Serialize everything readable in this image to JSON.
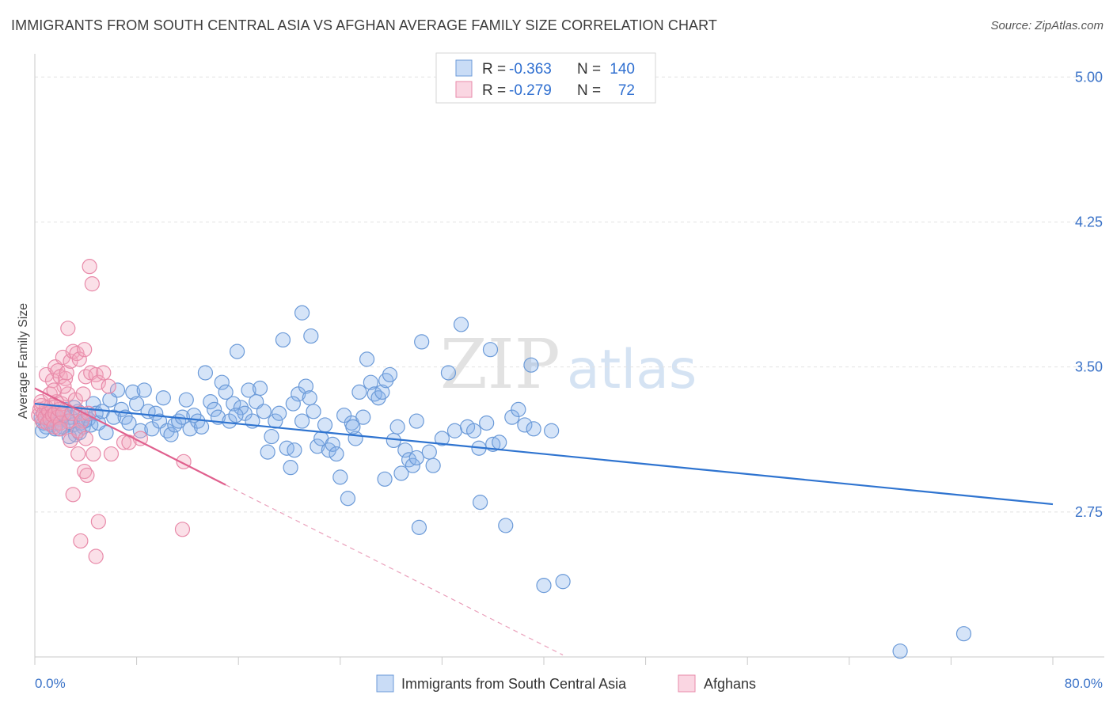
{
  "title": "IMMIGRANTS FROM SOUTH CENTRAL ASIA VS AFGHAN AVERAGE FAMILY SIZE CORRELATION CHART",
  "source": "Source: ZipAtlas.com",
  "watermark": {
    "zip": "ZIP",
    "atlas": "atlas"
  },
  "colors": {
    "blue": "#2f74d0",
    "blue_fill": "rgba(135,178,235,0.35)",
    "pink": "#e0608e",
    "pink_fill": "rgba(243,165,190,0.35)",
    "tick_label": "#3b73c8",
    "grid": "#e2e2e2"
  },
  "legend": {
    "rows": [
      {
        "r_label": "R =",
        "r_value": "-0.363",
        "n_label": "N =",
        "n_value": "140"
      },
      {
        "r_label": "R =",
        "r_value": "-0.279",
        "n_label": "N =",
        "n_value": "72"
      }
    ]
  },
  "bottom_legend": [
    "Immigrants from South Central Asia",
    "Afghans"
  ],
  "chart_data": {
    "type": "scatter",
    "ylabel": "Average Family Size",
    "xlim": [
      0,
      80
    ],
    "ylim": [
      2.0,
      5.12
    ],
    "x_tick_labels": [
      "0.0%",
      "80.0%"
    ],
    "y_ticks": [
      2.75,
      3.5,
      4.25,
      5.0
    ],
    "y_tick_labels": [
      "2.75",
      "3.50",
      "4.25",
      "5.00"
    ],
    "grid": true,
    "series": [
      {
        "name": "Immigrants from South Central Asia",
        "trend": {
          "x": [
            0.0,
            80.0
          ],
          "y": [
            3.31,
            2.79
          ]
        },
        "points": [
          [
            0.5,
            3.24
          ],
          [
            0.7,
            3.21
          ],
          [
            0.9,
            3.19
          ],
          [
            1.1,
            3.22
          ],
          [
            1.3,
            3.2
          ],
          [
            1.5,
            3.26
          ],
          [
            1.6,
            3.18
          ],
          [
            1.8,
            3.21
          ],
          [
            2.0,
            3.23
          ],
          [
            2.2,
            3.19
          ],
          [
            2.4,
            3.28
          ],
          [
            2.6,
            3.22
          ],
          [
            2.8,
            3.24
          ],
          [
            3.0,
            3.2
          ],
          [
            3.2,
            3.15
          ],
          [
            3.4,
            3.27
          ],
          [
            3.6,
            3.21
          ],
          [
            3.8,
            3.19
          ],
          [
            4.0,
            3.25
          ],
          [
            4.2,
            3.23
          ],
          [
            0.6,
            3.17
          ],
          [
            1.0,
            3.26
          ],
          [
            1.4,
            3.23
          ],
          [
            1.9,
            3.18
          ],
          [
            2.3,
            3.25
          ],
          [
            2.7,
            3.14
          ],
          [
            3.1,
            3.29
          ],
          [
            3.5,
            3.16
          ],
          [
            3.9,
            3.22
          ],
          [
            4.4,
            3.2
          ],
          [
            4.6,
            3.31
          ],
          [
            4.8,
            3.26
          ],
          [
            5.0,
            3.21
          ],
          [
            5.3,
            3.27
          ],
          [
            5.6,
            3.16
          ],
          [
            5.9,
            3.33
          ],
          [
            6.2,
            3.24
          ],
          [
            6.5,
            3.38
          ],
          [
            6.8,
            3.28
          ],
          [
            7.1,
            3.24
          ],
          [
            7.4,
            3.21
          ],
          [
            7.7,
            3.37
          ],
          [
            8.0,
            3.31
          ],
          [
            8.3,
            3.17
          ],
          [
            8.6,
            3.38
          ],
          [
            8.9,
            3.27
          ],
          [
            9.2,
            3.18
          ],
          [
            9.5,
            3.26
          ],
          [
            9.8,
            3.22
          ],
          [
            10.1,
            3.34
          ],
          [
            10.4,
            3.17
          ],
          [
            10.7,
            3.15
          ],
          [
            11.0,
            3.2
          ],
          [
            11.3,
            3.22
          ],
          [
            11.6,
            3.24
          ],
          [
            11.9,
            3.33
          ],
          [
            12.2,
            3.18
          ],
          [
            12.5,
            3.25
          ],
          [
            12.8,
            3.22
          ],
          [
            13.1,
            3.19
          ],
          [
            13.4,
            3.47
          ],
          [
            13.8,
            3.32
          ],
          [
            14.1,
            3.28
          ],
          [
            14.4,
            3.24
          ],
          [
            14.7,
            3.42
          ],
          [
            15.0,
            3.37
          ],
          [
            15.3,
            3.22
          ],
          [
            15.6,
            3.31
          ],
          [
            15.9,
            3.58
          ],
          [
            16.2,
            3.29
          ],
          [
            16.5,
            3.26
          ],
          [
            16.8,
            3.38
          ],
          [
            17.1,
            3.22
          ],
          [
            17.4,
            3.32
          ],
          [
            17.7,
            3.39
          ],
          [
            18.0,
            3.27
          ],
          [
            18.3,
            3.06
          ],
          [
            18.6,
            3.14
          ],
          [
            18.9,
            3.22
          ],
          [
            19.2,
            3.26
          ],
          [
            19.5,
            3.64
          ],
          [
            19.8,
            3.08
          ],
          [
            20.1,
            2.98
          ],
          [
            20.4,
            3.07
          ],
          [
            20.7,
            3.36
          ],
          [
            21.0,
            3.22
          ],
          [
            21.3,
            3.4
          ],
          [
            21.6,
            3.34
          ],
          [
            21.9,
            3.27
          ],
          [
            22.2,
            3.09
          ],
          [
            22.5,
            3.13
          ],
          [
            22.8,
            3.2
          ],
          [
            23.1,
            3.07
          ],
          [
            23.4,
            3.1
          ],
          [
            23.7,
            3.05
          ],
          [
            24.0,
            2.93
          ],
          [
            24.3,
            3.25
          ],
          [
            24.6,
            2.82
          ],
          [
            24.9,
            3.21
          ],
          [
            25.2,
            3.13
          ],
          [
            25.5,
            3.37
          ],
          [
            25.8,
            3.24
          ],
          [
            26.1,
            3.54
          ],
          [
            26.4,
            3.42
          ],
          [
            26.7,
            3.36
          ],
          [
            27.0,
            3.34
          ],
          [
            27.3,
            3.37
          ],
          [
            27.6,
            3.43
          ],
          [
            27.9,
            3.46
          ],
          [
            28.2,
            3.12
          ],
          [
            28.5,
            3.19
          ],
          [
            28.8,
            2.95
          ],
          [
            29.1,
            3.07
          ],
          [
            29.4,
            3.02
          ],
          [
            29.7,
            2.99
          ],
          [
            30.0,
            3.03
          ],
          [
            30.4,
            3.63
          ],
          [
            31.0,
            3.06
          ],
          [
            31.3,
            2.99
          ],
          [
            32.0,
            3.13
          ],
          [
            32.5,
            3.47
          ],
          [
            33.0,
            3.17
          ],
          [
            34.0,
            3.19
          ],
          [
            34.5,
            3.17
          ],
          [
            35.0,
            2.8
          ],
          [
            35.5,
            3.21
          ],
          [
            35.8,
            3.59
          ],
          [
            36.0,
            3.1
          ],
          [
            37.0,
            2.68
          ],
          [
            36.5,
            3.11
          ],
          [
            37.5,
            3.24
          ],
          [
            38.0,
            3.28
          ],
          [
            38.5,
            3.2
          ],
          [
            39.0,
            3.51
          ],
          [
            39.2,
            3.18
          ],
          [
            40.6,
            3.17
          ],
          [
            41.5,
            2.39
          ],
          [
            21.0,
            3.78
          ],
          [
            21.7,
            3.66
          ],
          [
            27.5,
            2.92
          ],
          [
            30.0,
            3.22
          ],
          [
            40.0,
            2.37
          ],
          [
            68.0,
            2.03
          ],
          [
            73.0,
            2.12
          ],
          [
            30.2,
            2.67
          ],
          [
            33.5,
            3.72
          ],
          [
            25.0,
            3.19
          ],
          [
            34.9,
            3.08
          ],
          [
            20.3,
            3.31
          ],
          [
            15.8,
            3.25
          ]
        ]
      },
      {
        "name": "Afghans",
        "trend": {
          "x": [
            0.0,
            15.0
          ],
          "y": [
            3.39,
            2.89
          ]
        },
        "trend_ext": {
          "x": [
            15.0,
            41.5
          ],
          "y": [
            2.89,
            2.01
          ]
        },
        "points": [
          [
            0.3,
            3.25
          ],
          [
            0.4,
            3.28
          ],
          [
            0.5,
            3.3
          ],
          [
            0.6,
            3.22
          ],
          [
            0.7,
            3.26
          ],
          [
            0.8,
            3.24
          ],
          [
            0.9,
            3.29
          ],
          [
            1.0,
            3.21
          ],
          [
            1.1,
            3.27
          ],
          [
            1.2,
            3.23
          ],
          [
            1.3,
            3.3
          ],
          [
            1.4,
            3.25
          ],
          [
            1.5,
            3.19
          ],
          [
            1.6,
            3.26
          ],
          [
            1.7,
            3.32
          ],
          [
            1.8,
            3.24
          ],
          [
            1.9,
            3.28
          ],
          [
            2.0,
            3.21
          ],
          [
            2.1,
            3.31
          ],
          [
            2.2,
            3.26
          ],
          [
            0.5,
            3.32
          ],
          [
            0.9,
            3.46
          ],
          [
            1.2,
            3.36
          ],
          [
            1.4,
            3.43
          ],
          [
            1.6,
            3.5
          ],
          [
            1.8,
            3.48
          ],
          [
            2.0,
            3.45
          ],
          [
            2.2,
            3.55
          ],
          [
            2.4,
            3.44
          ],
          [
            2.5,
            3.47
          ],
          [
            2.6,
            3.36
          ],
          [
            2.7,
            3.22
          ],
          [
            2.8,
            3.53
          ],
          [
            2.9,
            3.26
          ],
          [
            3.0,
            3.58
          ],
          [
            3.2,
            3.33
          ],
          [
            3.3,
            3.57
          ],
          [
            3.5,
            3.54
          ],
          [
            3.6,
            3.26
          ],
          [
            3.7,
            3.22
          ],
          [
            3.8,
            3.36
          ],
          [
            3.9,
            3.59
          ],
          [
            4.0,
            3.45
          ],
          [
            4.2,
            3.26
          ],
          [
            4.4,
            3.47
          ],
          [
            4.6,
            3.05
          ],
          [
            4.8,
            3.46
          ],
          [
            5.0,
            3.42
          ],
          [
            2.3,
            3.4
          ],
          [
            2.6,
            3.7
          ],
          [
            3.0,
            2.84
          ],
          [
            3.4,
            3.05
          ],
          [
            3.6,
            2.6
          ],
          [
            3.9,
            2.96
          ],
          [
            4.1,
            2.94
          ],
          [
            4.3,
            4.02
          ],
          [
            4.5,
            3.93
          ],
          [
            4.8,
            2.52
          ],
          [
            5.0,
            2.7
          ],
          [
            5.4,
            3.47
          ],
          [
            6.0,
            3.05
          ],
          [
            5.8,
            3.4
          ],
          [
            7.0,
            3.11
          ],
          [
            7.4,
            3.11
          ],
          [
            8.3,
            3.13
          ],
          [
            11.6,
            2.66
          ],
          [
            11.7,
            3.01
          ],
          [
            2.0,
            3.18
          ],
          [
            1.5,
            3.38
          ],
          [
            2.8,
            3.12
          ],
          [
            3.4,
            3.17
          ],
          [
            4.0,
            3.13
          ]
        ]
      }
    ]
  }
}
